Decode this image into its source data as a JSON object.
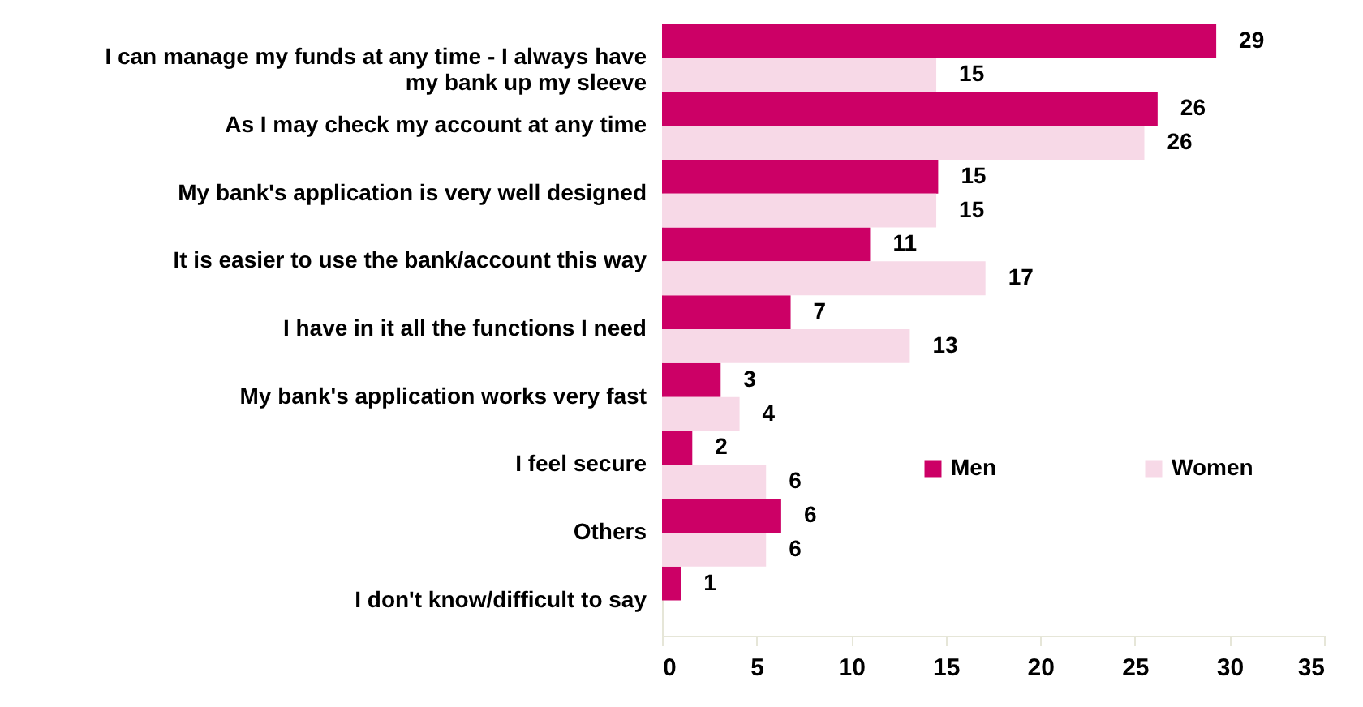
{
  "chart_data": {
    "type": "bar",
    "orientation": "horizontal",
    "categories": [
      "I can manage my funds at any time - I always have my bank up my sleeve",
      "As I may check my account at any time",
      "My bank's application is very well designed",
      "It is easier to use the bank/account this way",
      "I have in it all the functions I need",
      "My bank's application works very fast",
      "I feel secure",
      "Others",
      "I don't know/difficult to say"
    ],
    "series": [
      {
        "name": "Men",
        "color": "#cc0066",
        "values": [
          29.3,
          26.2,
          14.6,
          11.0,
          6.8,
          3.1,
          1.6,
          6.3,
          1.0
        ],
        "value_labels": [
          "29",
          "26",
          "15",
          "11",
          "7",
          "3",
          "2",
          "6",
          "1"
        ]
      },
      {
        "name": "Women",
        "color": "#f7d9e7",
        "values": [
          14.5,
          25.5,
          14.5,
          17.1,
          13.1,
          4.1,
          5.5,
          5.5,
          null
        ],
        "value_labels": [
          "15",
          "26",
          "15",
          "17",
          "13",
          "4",
          "6",
          "6",
          null
        ]
      }
    ],
    "xlim": [
      0,
      35
    ],
    "xticks": [
      0,
      5,
      10,
      15,
      20,
      25,
      30,
      35
    ],
    "grid": false,
    "legend": "right"
  }
}
